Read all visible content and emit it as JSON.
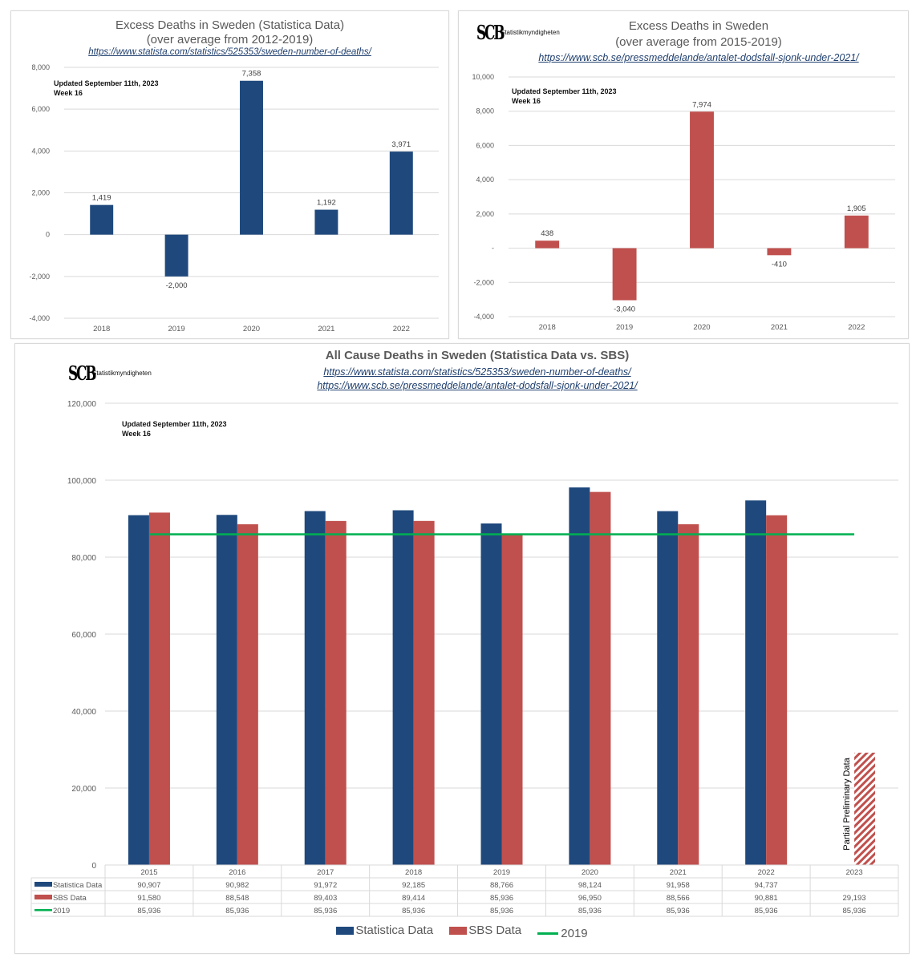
{
  "colors": {
    "statistica": "#1f497d",
    "sbs": "#c0504d",
    "baseline": "#00b050",
    "grid": "#d9d9d9",
    "axis_text": "#595959",
    "link": "#1f3f6e"
  },
  "note": {
    "line1": "Updated September 11th, 2023",
    "line2": "Week 16"
  },
  "logo": {
    "mark": "SCB",
    "text": "Statistikmyndigheten"
  },
  "chart_data": [
    {
      "type": "bar",
      "title": "Excess Deaths in Sweden (Statistica Data)",
      "subtitle": "(over average from 2012-2019)",
      "link": "https://www.statista.com/statistics/525353/sweden-number-of-deaths/",
      "categories": [
        "2018",
        "2019",
        "2020",
        "2021",
        "2022"
      ],
      "values": [
        1419,
        -2000,
        7358,
        1192,
        3971
      ],
      "value_labels": [
        "1,419",
        "-2,000",
        "7,358",
        "1,192",
        "3,971"
      ],
      "ylim": [
        -4000,
        8000
      ],
      "yticks": [
        -4000,
        -2000,
        0,
        2000,
        4000,
        6000,
        8000
      ],
      "ytick_labels": [
        "-4,000",
        "-2,000",
        "0",
        "2,000",
        "4,000",
        "6,000",
        "8,000"
      ],
      "color": "#1f497d",
      "grid": true,
      "xlabel": "",
      "ylabel": ""
    },
    {
      "type": "bar",
      "title": "Excess Deaths in Sweden",
      "subtitle": "(over average from 2015-2019)",
      "link": "https://www.scb.se/pressmeddelande/antalet-dodsfall-sjonk-under-2021/",
      "categories": [
        "2018",
        "2019",
        "2020",
        "2021",
        "2022"
      ],
      "values": [
        438,
        -3040,
        7974,
        -410,
        1905
      ],
      "value_labels": [
        "438",
        "-3,040",
        "7,974",
        "-410",
        "1,905"
      ],
      "ylim": [
        -4000,
        10000
      ],
      "yticks": [
        -4000,
        -2000,
        0,
        2000,
        4000,
        6000,
        8000,
        10000
      ],
      "ytick_labels": [
        "-4,000",
        "-2,000",
        "-",
        "2,000",
        "4,000",
        "6,000",
        "8,000",
        "10,000"
      ],
      "color": "#c0504d",
      "grid": true,
      "xlabel": "",
      "ylabel": ""
    },
    {
      "type": "bar",
      "title": "All Cause Deaths in Sweden (Statistica Data vs. SBS)",
      "links": [
        "https://www.statista.com/statistics/525353/sweden-number-of-deaths/",
        "https://www.scb.se/pressmeddelande/antalet-dodsfall-sjonk-under-2021/"
      ],
      "categories": [
        "2015",
        "2016",
        "2017",
        "2018",
        "2019",
        "2020",
        "2021",
        "2022",
        "2023"
      ],
      "series": [
        {
          "name": "Statistica Data",
          "type": "bar",
          "color": "#1f497d",
          "values": [
            90907,
            90982,
            91972,
            92185,
            88766,
            98124,
            91958,
            94737,
            null
          ],
          "labels": [
            "90,907",
            "90,982",
            "91,972",
            "92,185",
            "88,766",
            "98,124",
            "91,958",
            "94,737",
            ""
          ]
        },
        {
          "name": "SBS Data",
          "type": "bar",
          "color": "#c0504d",
          "values": [
            91580,
            88548,
            89403,
            89414,
            85936,
            96950,
            88566,
            90881,
            29193
          ],
          "labels": [
            "91,580",
            "88,548",
            "89,403",
            "89,414",
            "85,936",
            "96,950",
            "88,566",
            "90,881",
            "29,193"
          ],
          "hatched_last": true
        },
        {
          "name": "2019",
          "type": "line",
          "color": "#00b050",
          "values": [
            85936,
            85936,
            85936,
            85936,
            85936,
            85936,
            85936,
            85936,
            85936
          ],
          "labels": [
            "85,936",
            "85,936",
            "85,936",
            "85,936",
            "85,936",
            "85,936",
            "85,936",
            "85,936",
            "85,936"
          ]
        }
      ],
      "annotation": "Partial Preliminary Data",
      "ylim": [
        0,
        120000
      ],
      "yticks": [
        0,
        20000,
        40000,
        60000,
        80000,
        100000,
        120000
      ],
      "ytick_labels": [
        "0",
        "20,000",
        "40,000",
        "60,000",
        "80,000",
        "100,000",
        "120,000"
      ],
      "legend_position": "bottom",
      "data_table": true,
      "grid": true
    }
  ]
}
